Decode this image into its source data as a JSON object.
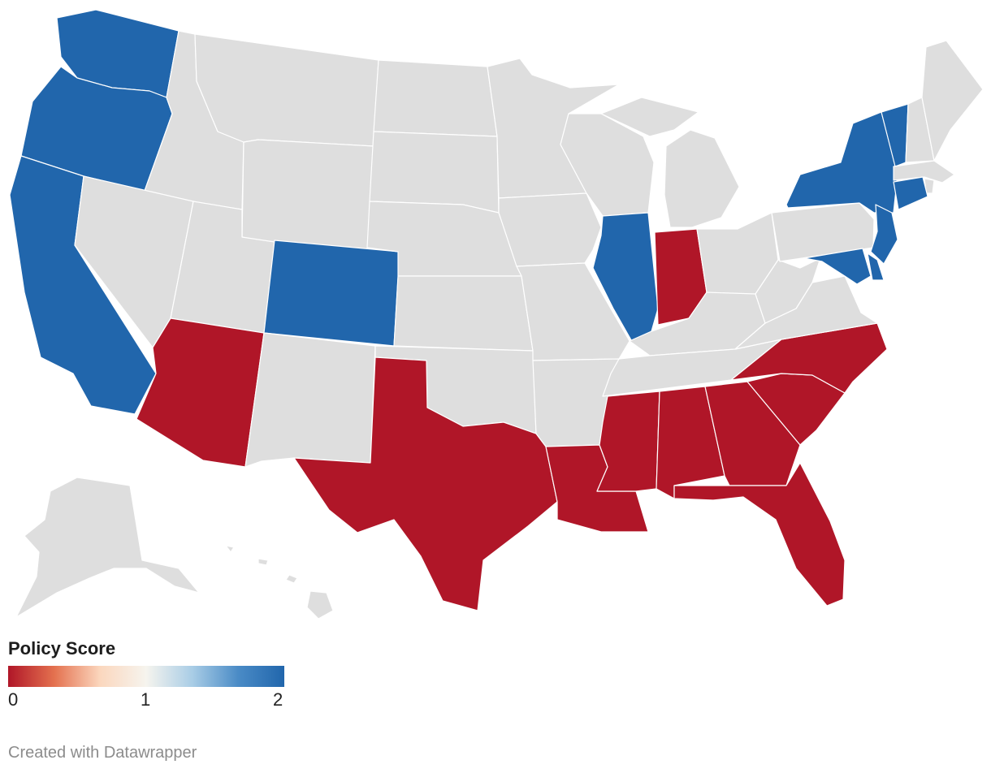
{
  "legend": {
    "title": "Policy Score",
    "ticks": [
      "0",
      "1",
      "2"
    ],
    "scale_min": 0,
    "scale_max": 2,
    "gradient_colors": [
      "#b01628",
      "#e4714f",
      "#fbd7be",
      "#f6f4ee",
      "#a9cde6",
      "#4a8bc6",
      "#2166ac"
    ]
  },
  "credit": "Created with Datawrapper",
  "colors": {
    "score_0": "#b01628",
    "score_2": "#2166ac",
    "no_data": "#dedede",
    "border": "#ffffff"
  },
  "states": {
    "score_2": [
      "Washington",
      "Oregon",
      "California",
      "Colorado",
      "Illinois",
      "New York",
      "Vermont",
      "Connecticut",
      "New Jersey",
      "Maryland",
      "Delaware"
    ],
    "score_0": [
      "Arizona",
      "Texas",
      "Louisiana",
      "Mississippi",
      "Alabama",
      "Georgia",
      "Florida",
      "South Carolina",
      "North Carolina",
      "Indiana"
    ]
  }
}
